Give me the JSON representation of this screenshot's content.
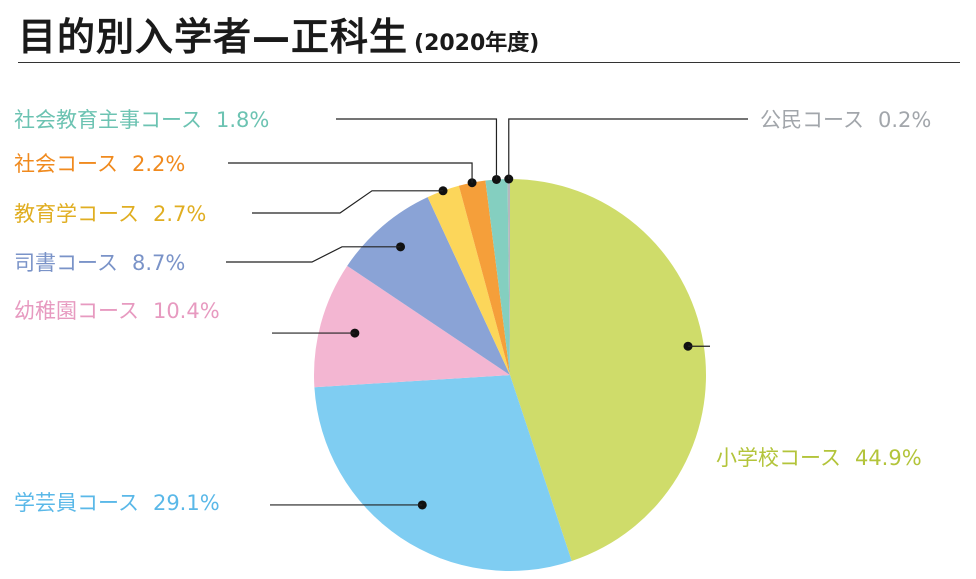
{
  "title": {
    "main": "目的別入学者—正科生",
    "sub": "(2020年度)"
  },
  "chart_data": {
    "type": "pie",
    "title": "目的別入学者—正科生",
    "subtitle": "(2020年度)",
    "slices": [
      {
        "label": "小学校コース",
        "value": 44.9,
        "value_text": "44.9%",
        "color": "#cfdc6a",
        "text_color": "#b3c43a"
      },
      {
        "label": "学芸員コース",
        "value": 29.1,
        "value_text": "29.1%",
        "color": "#7fcdf2",
        "text_color": "#5ab8e8"
      },
      {
        "label": "幼稚園コース",
        "value": 10.4,
        "value_text": "10.4%",
        "color": "#f3b6d2",
        "text_color": "#e79ac0"
      },
      {
        "label": "司書コース",
        "value": 8.7,
        "value_text": "8.7%",
        "color": "#8aa3d6",
        "text_color": "#7a93c8"
      },
      {
        "label": "教育学コース",
        "value": 2.7,
        "value_text": "2.7%",
        "color": "#fcd65a",
        "text_color": "#e0ae22"
      },
      {
        "label": "社会コース",
        "value": 2.2,
        "value_text": "2.2%",
        "color": "#f59f3a",
        "text_color": "#f08a1e"
      },
      {
        "label": "社会教育主事コース",
        "value": 1.8,
        "value_text": "1.8%",
        "color": "#84cfc0",
        "text_color": "#6cc3b2"
      },
      {
        "label": "公民コース",
        "value": 0.2,
        "value_text": "0.2%",
        "color": "#b5b8bd",
        "text_color": "#a2a6ab"
      }
    ],
    "legend": "none",
    "start_angle_deg": 0,
    "direction": "clockwise"
  }
}
